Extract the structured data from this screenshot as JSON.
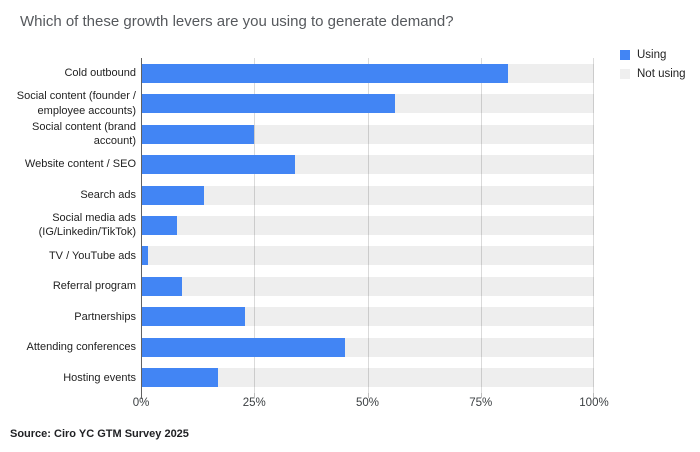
{
  "title": "Which of these growth levers are you using to generate demand?",
  "source": "Source: Ciro YC GTM Survey 2025",
  "colors": {
    "using": "#4285f4",
    "not_using": "#efefef",
    "gridline": "#dadada",
    "baseline": "#616161",
    "title_text": "#56595d"
  },
  "legend": {
    "items": [
      {
        "label": "Using",
        "color": "#4285f4"
      },
      {
        "label": "Not using",
        "color": "#efefef"
      }
    ]
  },
  "chart_data": {
    "type": "bar",
    "orientation": "horizontal",
    "stacked": true,
    "title": "Which of these growth levers are you using to generate demand?",
    "categories": [
      "Cold outbound",
      "Social content (founder / employee accounts)",
      "Social content (brand account)",
      "Website content / SEO",
      "Search ads",
      "Social media ads (IG/Linkedin/TikTok)",
      "TV / YouTube ads",
      "Referral program",
      "Partnerships",
      "Attending conferences",
      "Hosting events"
    ],
    "series": [
      {
        "name": "Using",
        "values": [
          81,
          56,
          25,
          34,
          14,
          8,
          1.5,
          9,
          23,
          45,
          17
        ]
      },
      {
        "name": "Not using",
        "values": [
          19,
          44,
          75,
          66,
          86,
          92,
          98.5,
          91,
          77,
          55,
          83
        ]
      }
    ],
    "x_ticks": [
      "0%",
      "25%",
      "50%",
      "75%",
      "100%"
    ],
    "xlim": [
      0,
      100
    ],
    "grid": true,
    "legend_position": "top-right"
  }
}
